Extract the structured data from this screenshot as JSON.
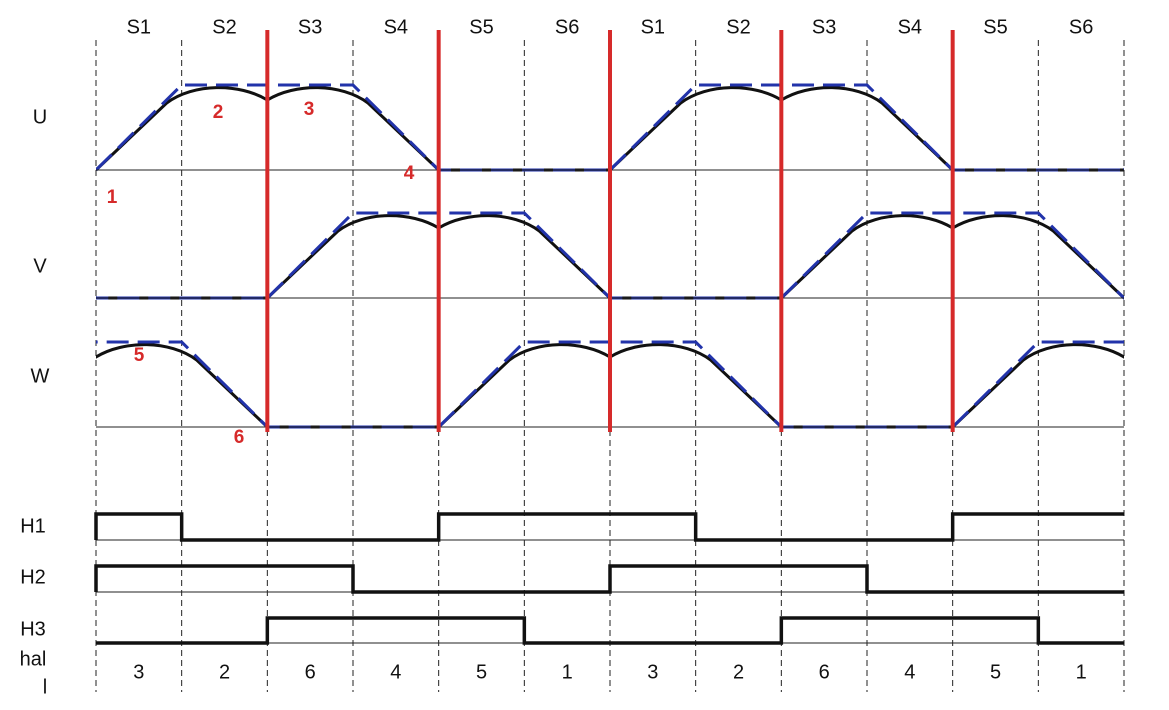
{
  "sector_labels": [
    "S1",
    "S2",
    "S3",
    "S4",
    "S5",
    "S6",
    "S1",
    "S2",
    "S3",
    "S4",
    "S5",
    "S6"
  ],
  "phase_labels": [
    "U",
    "V",
    "W"
  ],
  "point_labels": [
    1,
    2,
    3,
    4,
    5,
    6
  ],
  "hall_labels": [
    "H1",
    "H2",
    "H3"
  ],
  "hall_state_title": [
    "hal",
    "l"
  ],
  "hall_states": [
    3,
    2,
    6,
    4,
    5,
    1,
    3,
    2,
    6,
    4,
    5,
    1
  ]
}
